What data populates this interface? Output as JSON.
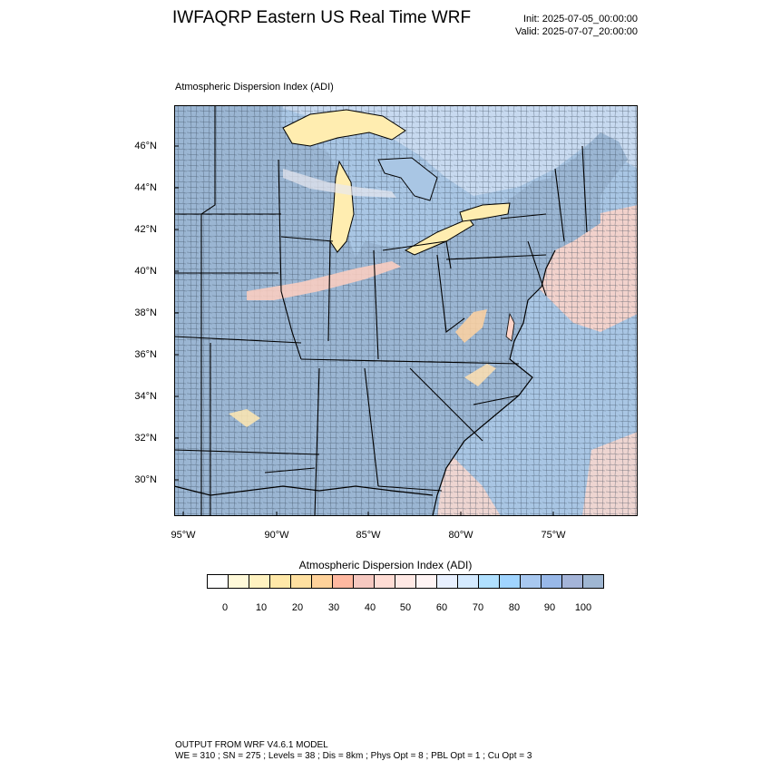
{
  "header": {
    "title": "IWFAQRP Eastern US Real Time WRF",
    "init": "Init: 2025-07-05_00:00:00",
    "valid": "Valid: 2025-07-07_20:00:00"
  },
  "map": {
    "title": "Atmospheric Dispersion Index   (ADI)",
    "lat_labels": [
      "46°N",
      "44°N",
      "42°N",
      "40°N",
      "38°N",
      "36°N",
      "34°N",
      "32°N",
      "30°N"
    ],
    "lon_labels": [
      "95°W",
      "90°W",
      "85°W",
      "80°W",
      "75°W"
    ],
    "land_color": "#9bb6d3",
    "water_color": "#a9c6e4",
    "warm_color": "#ffcfc0",
    "yellow_color": "#ffeeb0"
  },
  "colorbar": {
    "title": "Atmospheric Dispersion Index  (ADI)",
    "colors": [
      "#ffffff",
      "#fff9d9",
      "#fff2c0",
      "#ffe8a8",
      "#ffe0a0",
      "#ffd29a",
      "#ffb8a0",
      "#f6c8c0",
      "#ffdcd4",
      "#ffe8e4",
      "#fff4f4",
      "#e8f0ff",
      "#d4eaff",
      "#b0e0ff",
      "#a0d4ff",
      "#a8c8f0",
      "#98b8e8",
      "#a4b4d8",
      "#9fb6d2"
    ],
    "ticks": [
      "0",
      "10",
      "20",
      "30",
      "40",
      "50",
      "60",
      "70",
      "80",
      "90",
      "100"
    ]
  },
  "footer": {
    "line1": "OUTPUT FROM WRF V4.6.1 MODEL",
    "line2": "WE = 310 ; SN = 275 ; Levels = 38 ; Dis = 8km ; Phys Opt = 8 ; PBL Opt = 1 ; Cu Opt = 3"
  }
}
